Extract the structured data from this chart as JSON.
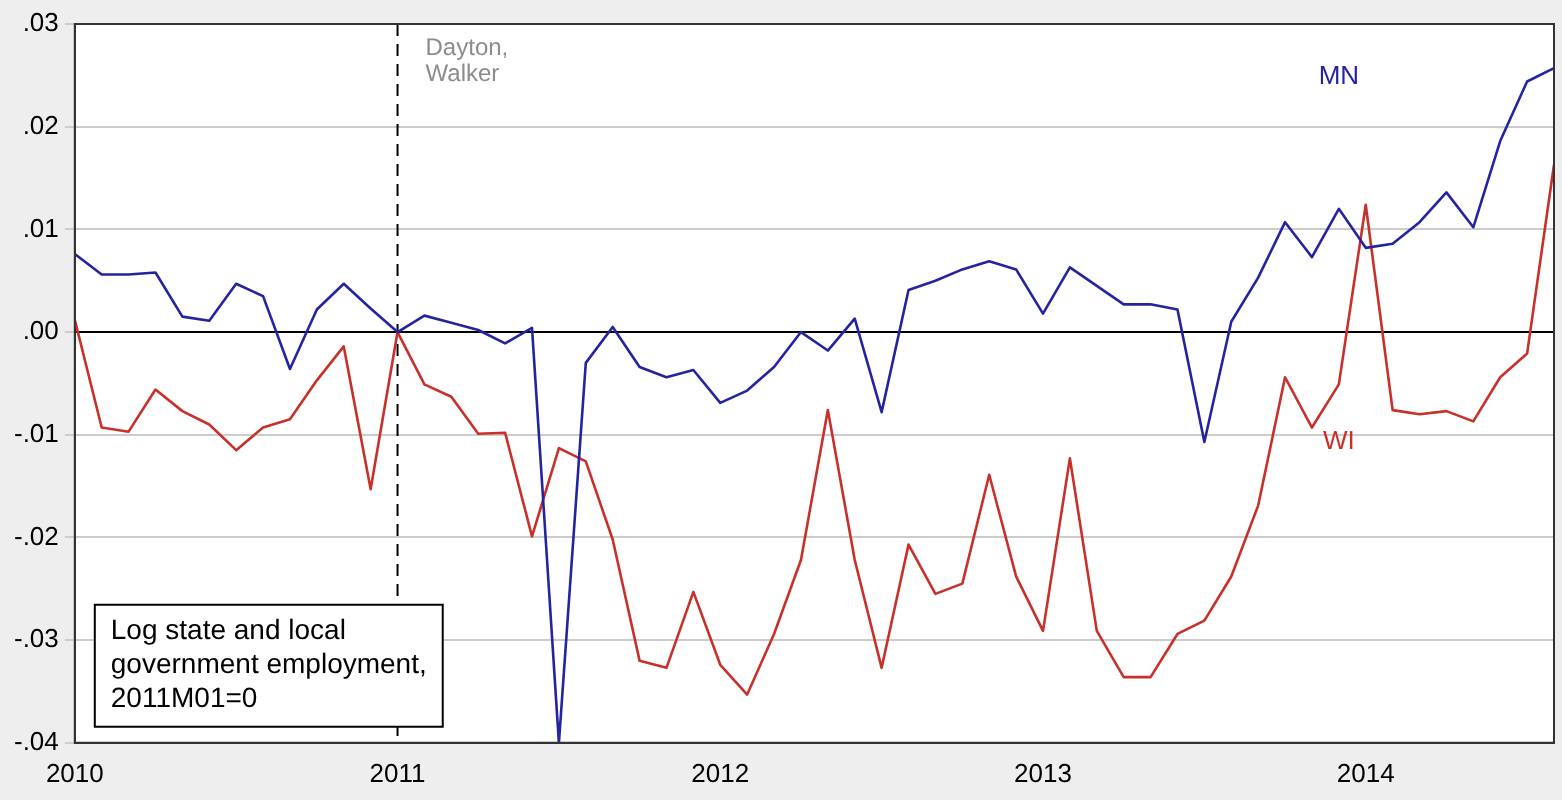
{
  "chart_data": {
    "type": "line",
    "annotations": [
      "Log state and local government employment, 2011M01=0"
    ],
    "x": [
      "2010-01",
      "2010-02",
      "2010-03",
      "2010-04",
      "2010-05",
      "2010-06",
      "2010-07",
      "2010-08",
      "2010-09",
      "2010-10",
      "2010-11",
      "2010-12",
      "2011-01",
      "2011-02",
      "2011-03",
      "2011-04",
      "2011-05",
      "2011-06",
      "2011-07",
      "2011-08",
      "2011-09",
      "2011-10",
      "2011-11",
      "2011-12",
      "2012-01",
      "2012-02",
      "2012-03",
      "2012-04",
      "2012-05",
      "2012-06",
      "2012-07",
      "2012-08",
      "2012-09",
      "2012-10",
      "2012-11",
      "2012-12",
      "2013-01",
      "2013-02",
      "2013-03",
      "2013-04",
      "2013-05",
      "2013-06",
      "2013-07",
      "2013-08",
      "2013-09",
      "2013-10",
      "2013-11",
      "2013-12",
      "2014-01",
      "2014-02",
      "2014-03",
      "2014-04",
      "2014-05",
      "2014-06",
      "2014-07",
      "2014-08"
    ],
    "series": [
      {
        "name": "MN",
        "color": "#2424a0",
        "values": [
          0.0076,
          0.0056,
          0.0056,
          0.0058,
          0.0015,
          0.0011,
          0.0047,
          0.0035,
          -0.0036,
          0.0022,
          0.0047,
          0.0023,
          0.0,
          0.0016,
          0.0009,
          0.0002,
          -0.0011,
          0.0004,
          -0.04,
          -0.003,
          0.0005,
          -0.0034,
          -0.0044,
          -0.0037,
          -0.0069,
          -0.0057,
          -0.0034,
          0.0,
          -0.0018,
          0.0013,
          -0.0078,
          0.0041,
          0.005,
          0.0061,
          0.0069,
          0.0061,
          0.0018,
          0.0063,
          0.0045,
          0.0027,
          0.0027,
          0.0022,
          -0.0107,
          0.001,
          0.0053,
          0.0107,
          0.0073,
          0.012,
          0.0082,
          0.0086,
          0.0107,
          0.0136,
          0.0102,
          0.0186,
          0.0244,
          0.0257
        ]
      },
      {
        "name": "WI",
        "color": "#c8302a",
        "values": [
          0.0012,
          -0.0093,
          -0.0097,
          -0.0056,
          -0.0077,
          -0.009,
          -0.0115,
          -0.0093,
          -0.0085,
          -0.0047,
          -0.0014,
          -0.0153,
          0.0,
          -0.0051,
          -0.0063,
          -0.0099,
          -0.0098,
          -0.0199,
          -0.0113,
          -0.0126,
          -0.0202,
          -0.032,
          -0.0327,
          -0.0253,
          -0.0324,
          -0.0353,
          -0.0294,
          -0.0222,
          -0.0076,
          -0.0222,
          -0.0327,
          -0.0207,
          -0.0255,
          -0.0245,
          -0.0139,
          -0.0238,
          -0.0291,
          -0.0123,
          -0.0291,
          -0.0336,
          -0.0336,
          -0.0294,
          -0.0281,
          -0.0238,
          -0.0169,
          -0.0044,
          -0.0093,
          -0.0051,
          0.0124,
          -0.0076,
          -0.008,
          -0.0077,
          -0.0087,
          -0.0044,
          -0.0021,
          0.0163
        ]
      }
    ],
    "xlim": [
      "2010-01",
      "2014-08"
    ],
    "xticks": [
      "2010",
      "2011",
      "2012",
      "2013",
      "2014"
    ],
    "ylim": [
      -0.04,
      0.03
    ],
    "yticks": [
      {
        "value": -0.04,
        "label": "-.04"
      },
      {
        "value": -0.03,
        "label": "-.03"
      },
      {
        "value": -0.02,
        "label": "-.02"
      },
      {
        "value": -0.01,
        "label": "-.01"
      },
      {
        "value": 0,
        "label": ".00"
      },
      {
        "value": 0.01,
        "label": ".01"
      },
      {
        "value": 0.02,
        "label": ".02"
      },
      {
        "value": 0.03,
        "label": ".03"
      }
    ],
    "ref_lines": [
      {
        "axis": "y",
        "value": 0,
        "color": "#000000",
        "line_style": "solid"
      },
      {
        "axis": "x",
        "value": "2011-01",
        "label": "Dayton, Walker",
        "color": "#000000",
        "line_style": "dashed"
      }
    ],
    "grid": "y",
    "legend": false,
    "marker": "none",
    "line_style": "solid"
  }
}
